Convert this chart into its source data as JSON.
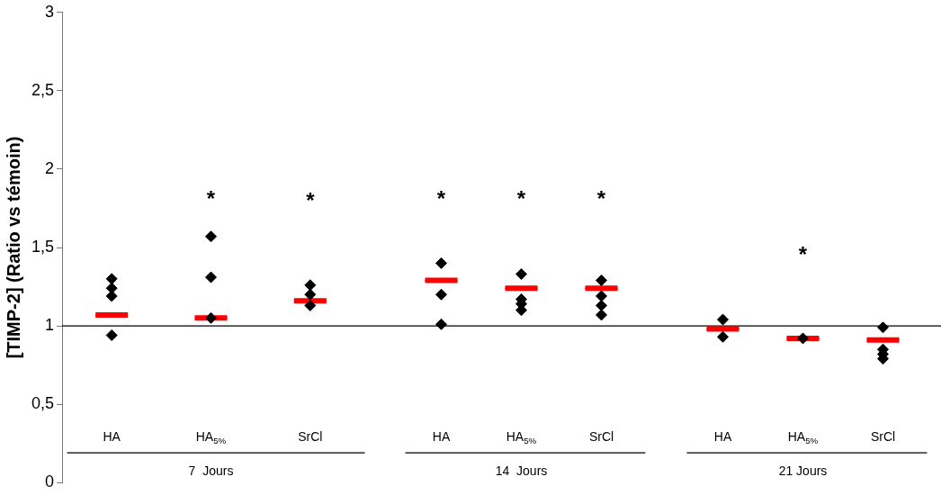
{
  "chart_data": [
    {
      "type": "scatter",
      "xlabel": "7  Jours",
      "ylabel": "[TIMP-2] (Ratio vs témoin)",
      "categories": [
        "HA",
        "HA$_{5%}$",
        "SrCl"
      ],
      "ylim": [
        0,
        3
      ],
      "yticks": [
        0,
        {
          "value": 0.5,
          "label": "0,5"
        },
        1,
        {
          "value": 1.5,
          "label": "1,5"
        },
        2,
        {
          "value": 2.5,
          "label": "2,5"
        },
        3
      ],
      "grid": false,
      "legend": false,
      "marker": "diamond",
      "series": [
        {
          "color": "#000000",
          "values": [
            1.3,
            1.57,
            1.26
          ],
          "value_labels": [
            null,
            "*",
            "*"
          ]
        },
        {
          "color": "#000000",
          "values": [
            1.24,
            1.31,
            1.2
          ]
        },
        {
          "color": "#000000",
          "values": [
            1.19,
            1.05,
            1.13
          ]
        },
        {
          "color": "#000000",
          "values": [
            0.94,
            null,
            null
          ]
        },
        {
          "type": "box",
          "color": "#ff0000",
          "boxes": [
            {
              "low": 1.07,
              "q1": 1.07,
              "median": 1.07,
              "q3": 1.07,
              "high": 1.07
            },
            {
              "low": 1.05,
              "q1": 1.05,
              "median": 1.05,
              "q3": 1.05,
              "high": 1.05
            },
            {
              "low": 1.16,
              "q1": 1.16,
              "median": 1.16,
              "q3": 1.16,
              "high": 1.16
            }
          ]
        }
      ],
      "ref_lines": [
        {
          "axis": "y",
          "value": 1,
          "color": "#000000"
        }
      ]
    },
    {
      "type": "scatter",
      "xlabel": "14  Jours",
      "categories": [
        "HA",
        "HA$_{5%}$",
        "SrCl"
      ],
      "ylim": [
        0,
        3
      ],
      "tick_labels": "x",
      "grid": false,
      "legend": false,
      "marker": "diamond",
      "series": [
        {
          "color": "#000000",
          "values": [
            1.4,
            1.33,
            1.29
          ],
          "value_labels": [
            "*",
            "*",
            "*"
          ]
        },
        {
          "color": "#000000",
          "values": [
            null,
            1.17,
            1.19
          ]
        },
        {
          "color": "#000000",
          "values": [
            1.2,
            1.14,
            1.13
          ]
        },
        {
          "color": "#000000",
          "values": [
            1.01,
            1.1,
            1.07
          ]
        },
        {
          "type": "box",
          "color": "#ff0000",
          "boxes": [
            {
              "low": 1.29,
              "q1": 1.29,
              "median": 1.29,
              "q3": 1.29,
              "high": 1.29
            },
            {
              "low": 1.24,
              "q1": 1.24,
              "median": 1.24,
              "q3": 1.24,
              "high": 1.24
            },
            {
              "low": 1.24,
              "q1": 1.24,
              "median": 1.24,
              "q3": 1.24,
              "high": 1.24
            }
          ]
        }
      ],
      "ref_lines": [
        {
          "axis": "y",
          "value": 1,
          "color": "#000000"
        }
      ]
    },
    {
      "type": "scatter",
      "xlabel": "21 Jours",
      "categories": [
        "HA",
        "HA$_{5%}$",
        "SrCl"
      ],
      "ylim": [
        0,
        3
      ],
      "tick_labels": "x",
      "grid": false,
      "legend": false,
      "marker": "diamond",
      "series": [
        {
          "color": "#000000",
          "values": [
            1.04,
            0.92,
            0.99
          ],
          "value_labels": [
            null,
            "*",
            null
          ]
        },
        {
          "color": "#000000",
          "values": [
            0.93,
            null,
            0.85
          ]
        },
        {
          "color": "#000000",
          "values": [
            null,
            null,
            0.82
          ]
        },
        {
          "color": "#000000",
          "values": [
            null,
            null,
            0.79
          ]
        },
        {
          "type": "box",
          "color": "#ff0000",
          "boxes": [
            {
              "low": 0.98,
              "q1": 0.98,
              "median": 0.98,
              "q3": 0.98,
              "high": 0.98
            },
            {
              "low": 0.92,
              "q1": 0.92,
              "median": 0.92,
              "q3": 0.92,
              "high": 0.92
            },
            {
              "low": 0.91,
              "q1": 0.91,
              "median": 0.91,
              "q3": 0.91,
              "high": 0.91
            }
          ]
        }
      ],
      "ref_lines": [
        {
          "axis": "y",
          "value": 1,
          "color": "#000000"
        }
      ]
    }
  ]
}
